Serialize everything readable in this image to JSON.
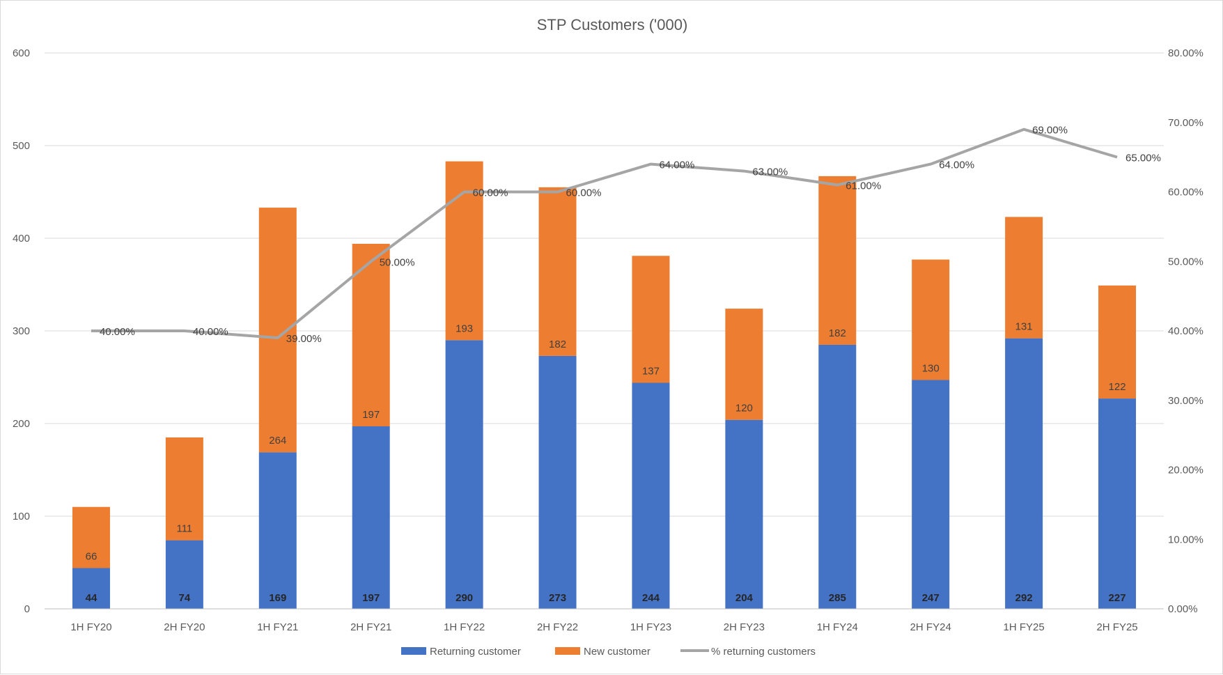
{
  "chart_data": {
    "type": "bar",
    "stacked": true,
    "title": "STP Customers ('000)",
    "categories": [
      "1H FY20",
      "2H FY20",
      "1H FY21",
      "2H FY21",
      "1H FY22",
      "2H FY22",
      "1H FY23",
      "2H FY23",
      "1H FY24",
      "2H FY24",
      "1H FY25",
      "2H FY25"
    ],
    "series": [
      {
        "name": "Returning customer",
        "type": "bar",
        "axis": "left",
        "color": "#4472C4",
        "values": [
          44,
          74,
          169,
          197,
          290,
          273,
          244,
          204,
          285,
          247,
          292,
          227
        ]
      },
      {
        "name": "New customer",
        "type": "bar",
        "axis": "left",
        "color": "#ED7D31",
        "values": [
          66,
          111,
          264,
          197,
          193,
          182,
          137,
          120,
          182,
          130,
          131,
          122
        ]
      },
      {
        "name": "% returning customers",
        "type": "line",
        "axis": "right",
        "color": "#A5A5A5",
        "values": [
          40,
          40,
          39,
          50,
          60,
          60,
          64,
          63,
          61,
          64,
          69,
          65
        ],
        "labels": [
          "40.00%",
          "40.00%",
          "39.00%",
          "50.00%",
          "60.00%",
          "60.00%",
          "64.00%",
          "63.00%",
          "61.00%",
          "64.00%",
          "69.00%",
          "65.00%"
        ]
      }
    ],
    "left_axis": {
      "range": [
        0,
        600
      ],
      "ticks": [
        0,
        100,
        200,
        300,
        400,
        500,
        600
      ],
      "tick_labels": [
        "0",
        "100",
        "200",
        "300",
        "400",
        "500",
        "600"
      ]
    },
    "right_axis": {
      "range": [
        0,
        80
      ],
      "ticks": [
        0,
        10,
        20,
        30,
        40,
        50,
        60,
        70,
        80
      ],
      "tick_labels": [
        "0.00%",
        "10.00%",
        "20.00%",
        "30.00%",
        "40.00%",
        "50.00%",
        "60.00%",
        "70.00%",
        "80.00%"
      ]
    },
    "grid": true,
    "legend": "bottom-center"
  }
}
